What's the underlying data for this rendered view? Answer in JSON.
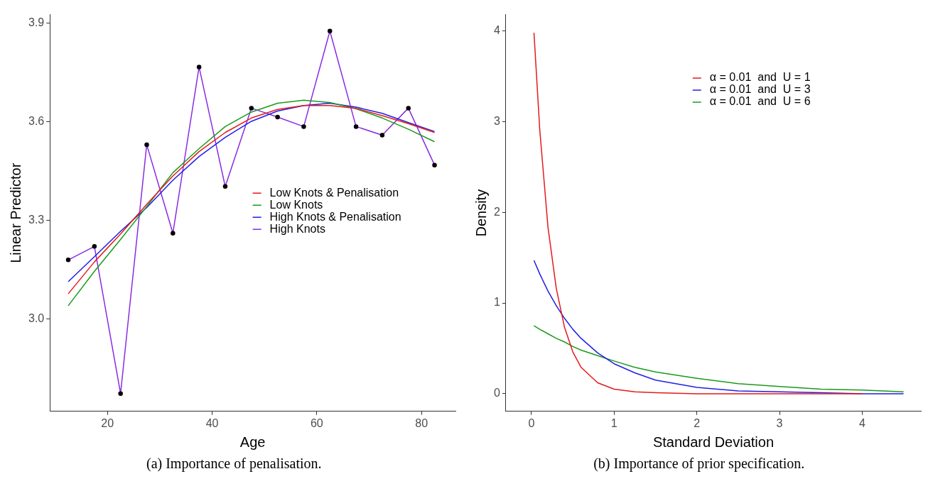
{
  "chart_data": [
    {
      "type": "line",
      "xlabel": "Age",
      "ylabel": "Linear Predictor",
      "x": [
        12.5,
        17.5,
        22.5,
        27.5,
        32.5,
        37.5,
        42.5,
        47.5,
        52.5,
        57.5,
        62.5,
        67.5,
        72.5,
        77.5,
        82.5
      ],
      "xlim": [
        9,
        86.5
      ],
      "xticks": [
        20,
        40,
        60,
        80
      ],
      "ylim": [
        2.72,
        3.925
      ],
      "yticks": [
        {
          "value": 3.0,
          "label": "3.0"
        },
        {
          "value": 3.3,
          "label": "3.3"
        },
        {
          "value": 3.6,
          "label": "3.6"
        },
        {
          "value": 3.9,
          "label": "3.9"
        }
      ],
      "grid": false,
      "legend": "right",
      "annotations": [
        "(a) Importance of penalisation."
      ],
      "series": [
        {
          "name": "Low Knots & Penalisation",
          "color": "#e41a1c",
          "values": [
            3.077,
            3.174,
            3.259,
            3.349,
            3.435,
            3.509,
            3.567,
            3.611,
            3.637,
            3.649,
            3.649,
            3.64,
            3.618,
            3.594,
            3.567
          ]
        },
        {
          "name": "Low Knots",
          "color": "#1a9a1a",
          "values": [
            3.041,
            3.145,
            3.242,
            3.342,
            3.445,
            3.518,
            3.585,
            3.629,
            3.656,
            3.665,
            3.658,
            3.639,
            3.611,
            3.577,
            3.539
          ]
        },
        {
          "name": "High Knots & Penalisation",
          "color": "#1f1fe6",
          "values": [
            3.114,
            3.19,
            3.267,
            3.339,
            3.422,
            3.494,
            3.552,
            3.601,
            3.632,
            3.649,
            3.656,
            3.644,
            3.625,
            3.597,
            3.57
          ]
        },
        {
          "name": "High Knots",
          "color": "#8a2be2",
          "marker": "circle",
          "values": [
            3.18,
            3.221,
            2.774,
            3.53,
            3.261,
            3.766,
            3.403,
            3.641,
            3.614,
            3.585,
            3.875,
            3.585,
            3.559,
            3.641,
            3.468
          ]
        }
      ]
    },
    {
      "type": "line",
      "xlabel": "Standard Deviation",
      "ylabel": "Density",
      "x": [
        0.03,
        0.1,
        0.2,
        0.3,
        0.4,
        0.5,
        0.6,
        0.8,
        1.0,
        1.25,
        1.5,
        2,
        2.5,
        3,
        3.5,
        4,
        4.5
      ],
      "xlim": [
        -0.31,
        4.71
      ],
      "xticks": [
        0,
        1,
        2,
        3,
        4
      ],
      "ylim": [
        -0.195,
        4.18
      ],
      "yticks": [
        0,
        1,
        2,
        3,
        4
      ],
      "grid": false,
      "legend": "top right",
      "annotations": [
        "(b) Importance of prior specification."
      ],
      "series": [
        {
          "name": "α = 0.01  and  U = 1",
          "color": "#e41a1c",
          "values": [
            3.98,
            2.91,
            1.83,
            1.16,
            0.73,
            0.46,
            0.29,
            0.12,
            0.05,
            0.02,
            0.01,
            0,
            0,
            0,
            0,
            0,
            null
          ]
        },
        {
          "name": "α = 0.01  and  U = 3",
          "color": "#1f1fe6",
          "values": [
            1.47,
            1.32,
            1.13,
            0.97,
            0.83,
            0.71,
            0.61,
            0.45,
            0.33,
            0.23,
            0.15,
            0.07,
            0.03,
            0.02,
            0.01,
            0,
            0
          ]
        },
        {
          "name": "α = 0.01  and  U = 6",
          "color": "#1a9a1a",
          "values": [
            0.75,
            0.71,
            0.66,
            0.61,
            0.57,
            0.52,
            0.48,
            0.42,
            0.36,
            0.29,
            0.24,
            0.17,
            0.11,
            0.08,
            0.05,
            0.04,
            0.02
          ]
        }
      ]
    }
  ]
}
